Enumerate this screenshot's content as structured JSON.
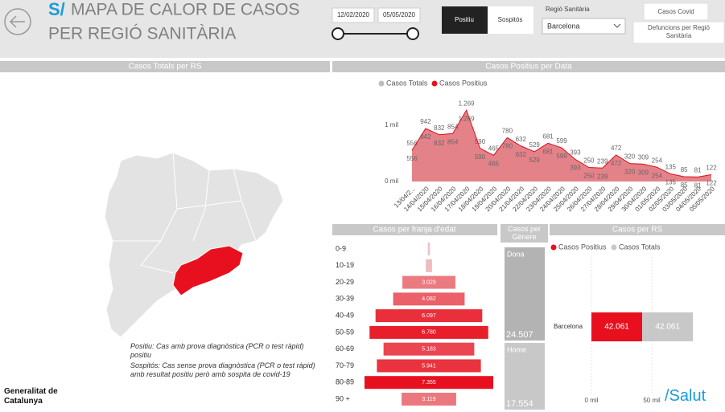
{
  "header": {
    "logo": "S/",
    "title_line1": "MAPA DE CALOR DE CASOS",
    "title_line2": "PER REGIÓ SANITÀRIA"
  },
  "filters": {
    "date_start": "12/02/2020",
    "date_end": "05/05/2020",
    "case_types": [
      "Positiu",
      "Sospitós"
    ],
    "region_label": "Regió Sanitària",
    "region_value": "Barcelona"
  },
  "nav_buttons": [
    "Casos Covid",
    "Defuncions per Regió Sanitària"
  ],
  "map": {
    "title": "Casos Totals per RS"
  },
  "notes": [
    "Positiu: Cas amb prova diagnòstica (PCR o test ràpid) positiu",
    "Sospitós: Cas sense prova diagnòstica (PCR o test ràpid) amb resultat positiu però amb sospita de covid-19"
  ],
  "footer": {
    "org": "Generalitat de Catalunya",
    "brand": "/Salut"
  },
  "chart_data": [
    {
      "type": "area",
      "title": "Casos Positius per Data",
      "categories": [
        "13/04/2...",
        "14/04/2020",
        "15/04/2020",
        "16/04/2020",
        "17/04/2020",
        "18/04/2020",
        "19/04/2020",
        "20/04/2020",
        "21/04/2020",
        "22/04/2020",
        "23/04/2020",
        "24/04/2020",
        "25/04/2020",
        "26/04/2020",
        "27/04/2020",
        "28/04/2020",
        "29/04/2020",
        "30/04/2020",
        "01/05/2020",
        "02/05/2020",
        "03/05/2020",
        "04/05/2020",
        "05/05/2020"
      ],
      "series": [
        {
          "name": "Casos Totals",
          "color": "#bdbdbd",
          "values": [
            556,
            942,
            832,
            854,
            1269,
            590,
            465,
            780,
            632,
            529,
            681,
            599,
            393,
            250,
            239,
            472,
            320,
            309,
            254,
            135,
            85,
            81,
            122
          ],
          "value_labels": [
            "556",
            "942",
            "832",
            "854",
            "1.269",
            "590",
            "465",
            "780",
            "632",
            "529",
            "681",
            "599",
            "393",
            "250",
            "239",
            "472",
            "320",
            "309",
            "254",
            "135",
            "85",
            "81",
            "122"
          ]
        },
        {
          "name": "Casos Positius",
          "color": "#e8101e",
          "values": [
            556,
            942,
            832,
            854,
            1269,
            590,
            465,
            780,
            632,
            529,
            681,
            599,
            393,
            250,
            239,
            472,
            320,
            309,
            254,
            135,
            85,
            81,
            122
          ],
          "value_labels": [
            "556",
            "942",
            "832",
            "854",
            "1.269",
            "590",
            "465",
            "780",
            "632",
            "529",
            "681",
            "599",
            "393",
            "250",
            "239",
            "472",
            "320",
            "309",
            "254",
            "135",
            "85",
            "81",
            "122"
          ]
        }
      ],
      "ylim": [
        0,
        1400
      ],
      "yticks": [
        {
          "value": 0,
          "label": "0 mil"
        },
        {
          "value": 1000,
          "label": "1 mil"
        }
      ],
      "grid": false,
      "legend": "top"
    },
    {
      "type": "bar",
      "orientation": "horizontal",
      "centered": true,
      "title": "Casos per franja d'edat",
      "categories": [
        "0-9",
        "10-19",
        "20-29",
        "30-39",
        "40-49",
        "50-59",
        "60-69",
        "70-79",
        "80-89",
        "90 +"
      ],
      "values": [
        120,
        355,
        3029,
        4082,
        6097,
        6780,
        5183,
        5941,
        7355,
        3119
      ],
      "value_labels": [
        null,
        null,
        "3.029",
        "4.082",
        "6.097",
        "6.780",
        "5.183",
        "5.941",
        "7.355",
        "3.119"
      ],
      "color_min": "#efc4c7",
      "color_max": "#e8101e"
    },
    {
      "type": "stacked_bar",
      "title": "Casos per Gènere",
      "categories": [
        "Dona",
        "Home"
      ],
      "values": [
        24507,
        17554
      ],
      "value_labels": [
        "24.507",
        "17.554"
      ],
      "colors": [
        "#b3b3b3",
        "#c8c8c8"
      ]
    },
    {
      "type": "bar",
      "orientation": "horizontal",
      "stacked": true,
      "title": "Casos per RS",
      "categories": [
        "Barcelona"
      ],
      "series": [
        {
          "name": "Casos Positius",
          "color": "#e8101e",
          "values": [
            42061
          ],
          "value_labels": [
            "42.061"
          ]
        },
        {
          "name": "Casos Totals",
          "color": "#c8c8c8",
          "values": [
            42061
          ],
          "value_labels": [
            "42.061"
          ]
        }
      ],
      "xlim": [
        0,
        95000
      ],
      "xticks": [
        {
          "value": 0,
          "label": "0 mil"
        },
        {
          "value": 50000,
          "label": "50 mil"
        }
      ],
      "grid": true,
      "legend": "top"
    }
  ]
}
